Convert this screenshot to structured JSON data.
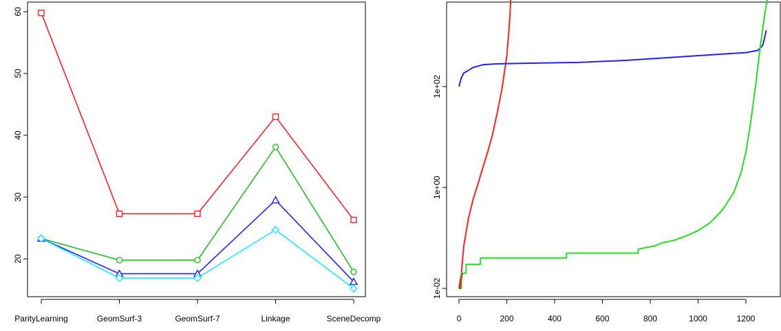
{
  "chart_data": [
    {
      "type": "line",
      "categories": [
        "ParityLearning",
        "GeomSurf-3",
        "GeomSurf-7",
        "Linkage",
        "SceneDecomp"
      ],
      "y_ticks": [
        20,
        30,
        40,
        50,
        60
      ],
      "ylim": [
        14.5,
        61.5
      ],
      "grid": false,
      "series": [
        {
          "color": "#ff2020",
          "marker": "square",
          "values": [
            59.8,
            27.3,
            27.3,
            43.0,
            26.3
          ]
        },
        {
          "color": "#20c020",
          "marker": "circle",
          "values": [
            23.3,
            19.8,
            19.8,
            38.1,
            17.9
          ]
        },
        {
          "color": "#2020ff",
          "marker": "triangle",
          "values": [
            23.3,
            17.6,
            17.6,
            29.5,
            16.3
          ]
        },
        {
          "color": "#20e8ff",
          "marker": "diamond",
          "values": [
            23.3,
            16.9,
            16.9,
            24.7,
            15.2
          ]
        }
      ]
    },
    {
      "type": "line",
      "y_scale": "log",
      "x_ticks": [
        0,
        200,
        400,
        600,
        800,
        1000,
        1200
      ],
      "y_ticks": [
        "1e-02",
        "1e+00",
        "1e+02"
      ],
      "xlim": [
        -50,
        1335
      ],
      "ylim": [
        0.007,
        16000
      ],
      "grid": false,
      "series": [
        {
          "color": "#ff2020",
          "x": [
            0,
            10,
            20,
            40,
            60,
            80,
            100,
            120,
            140,
            160,
            180,
            200,
            210,
            220
          ],
          "y": [
            0.01,
            0.02,
            0.07,
            0.25,
            0.6,
            1.2,
            2.5,
            5,
            11,
            30,
            90,
            400,
            1500,
            10000
          ]
        },
        {
          "color": "#2020ff",
          "x": [
            0,
            10,
            20,
            40,
            60,
            100,
            150,
            200,
            300,
            500,
            700,
            900,
            1100,
            1200,
            1250,
            1270,
            1280,
            1285
          ],
          "y": [
            100,
            150,
            185,
            210,
            240,
            270,
            280,
            285,
            290,
            300,
            330,
            380,
            440,
            470,
            520,
            650,
            1000,
            1300
          ]
        },
        {
          "color": "#20e020",
          "x": [
            0,
            10,
            10,
            30,
            30,
            90,
            90,
            450,
            450,
            750,
            750,
            820,
            850,
            900,
            950,
            1000,
            1050,
            1100,
            1150,
            1180,
            1200,
            1220,
            1240,
            1260,
            1280,
            1295,
            1300
          ],
          "y": [
            0.01,
            0.01,
            0.02,
            0.02,
            0.03,
            0.03,
            0.04,
            0.04,
            0.05,
            0.05,
            0.06,
            0.07,
            0.08,
            0.09,
            0.11,
            0.14,
            0.2,
            0.35,
            0.8,
            2,
            5,
            20,
            100,
            600,
            3000,
            7000,
            10000
          ]
        },
        {
          "color": "#a05020",
          "x": [
            0,
            5,
            10,
            15
          ],
          "y": [
            0.01,
            0.01,
            0.015,
            0.02
          ]
        }
      ]
    }
  ]
}
